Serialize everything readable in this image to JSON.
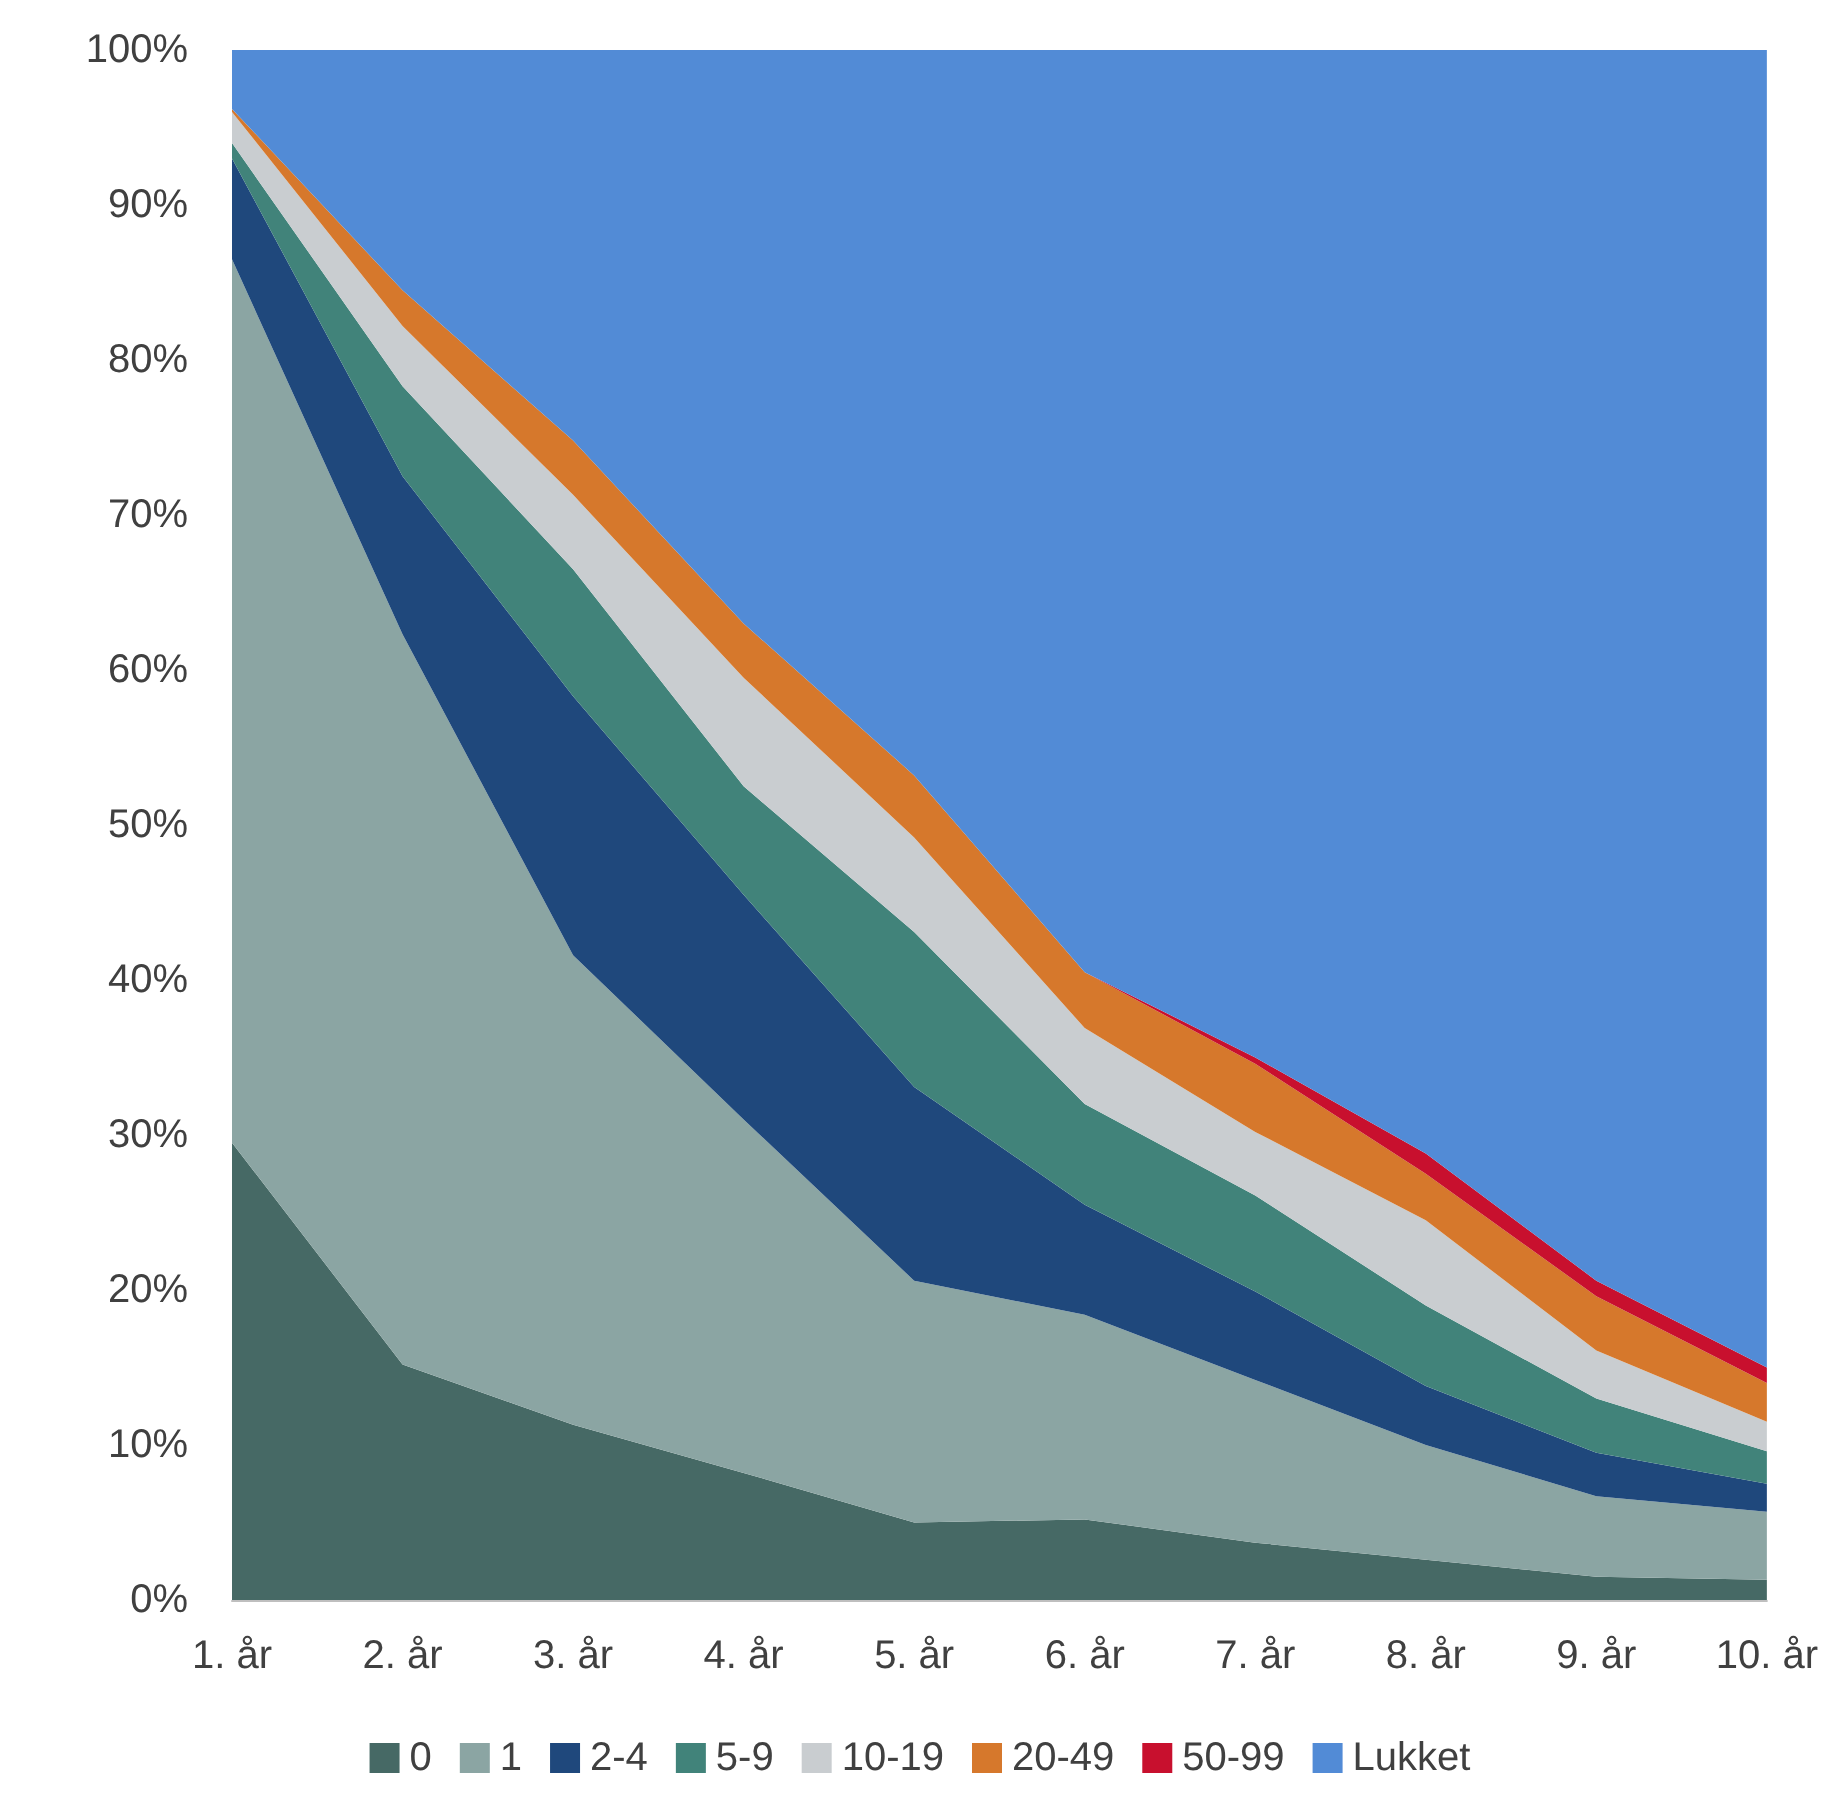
{
  "chart_data": {
    "type": "area",
    "stacked": true,
    "categories": [
      "1. år",
      "2. år",
      "3. år",
      "4. år",
      "5. år",
      "6. år",
      "7. år",
      "8. år",
      "9. år",
      "10. år"
    ],
    "series": [
      {
        "name": "0",
        "color": "#466965",
        "values": [
          29.5,
          15.2,
          11.3,
          8.2,
          5.0,
          5.2,
          3.7,
          2.6,
          1.5,
          1.3
        ]
      },
      {
        "name": "1",
        "color": "#8ba5a3",
        "values": [
          57.0,
          47.1,
          30.3,
          22.8,
          15.6,
          13.2,
          10.5,
          7.4,
          5.2,
          4.4
        ]
      },
      {
        "name": "2-4",
        "color": "#1f487c",
        "values": [
          6.5,
          10.2,
          16.7,
          14.5,
          12.5,
          7.1,
          5.7,
          3.8,
          2.8,
          1.8
        ]
      },
      {
        "name": "5-9",
        "color": "#41837a",
        "values": [
          1.0,
          5.8,
          8.2,
          7.0,
          10.0,
          6.5,
          6.2,
          5.2,
          3.5,
          2.1
        ]
      },
      {
        "name": "10-19",
        "color": "#c9cdd0",
        "values": [
          2.0,
          3.9,
          4.8,
          7.0,
          6.1,
          4.9,
          4.1,
          5.5,
          3.1,
          1.9
        ]
      },
      {
        "name": "20-49",
        "color": "#d6782c",
        "values": [
          0.2,
          2.3,
          3.5,
          3.5,
          4.0,
          3.6,
          4.4,
          3.0,
          3.5,
          2.5
        ]
      },
      {
        "name": "50-99",
        "color": "#c8102e",
        "values": [
          0,
          0,
          0,
          0,
          0,
          0,
          0.4,
          1.3,
          1.0,
          1.0
        ]
      },
      {
        "name": "Lukket",
        "color": "#528bd6",
        "values": [
          3.8,
          15.5,
          25.2,
          37.0,
          46.8,
          59.5,
          65.0,
          71.2,
          79.4,
          85.0
        ]
      }
    ],
    "ylim": [
      0,
      100
    ],
    "yticks": [
      {
        "value": 0,
        "label": "0%"
      },
      {
        "value": 10,
        "label": "10%"
      },
      {
        "value": 20,
        "label": "20%"
      },
      {
        "value": 30,
        "label": "30%"
      },
      {
        "value": 40,
        "label": "40%"
      },
      {
        "value": 50,
        "label": "50%"
      },
      {
        "value": 60,
        "label": "60%"
      },
      {
        "value": 70,
        "label": "70%"
      },
      {
        "value": 80,
        "label": "80%"
      },
      {
        "value": 90,
        "label": "90%"
      },
      {
        "value": 100,
        "label": "100%"
      }
    ],
    "grid": false,
    "legend": "bottom"
  }
}
